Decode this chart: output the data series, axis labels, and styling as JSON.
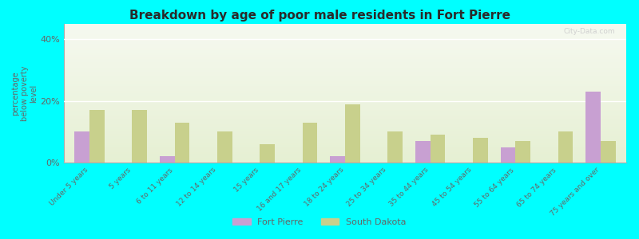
{
  "title": "Breakdown by age of poor male residents in Fort Pierre",
  "ylabel": "percentage\nbelow poverty\nlevel",
  "categories": [
    "Under 5 years",
    "5 years",
    "6 to 11 years",
    "12 to 14 years",
    "15 years",
    "16 and 17 years",
    "18 to 24 years",
    "25 to 34 years",
    "35 to 44 years",
    "45 to 54 years",
    "55 to 64 years",
    "65 to 74 years",
    "75 years and over"
  ],
  "fort_pierre": [
    10,
    0,
    2,
    0,
    0,
    0,
    2,
    0,
    7,
    0,
    5,
    0,
    23
  ],
  "south_dakota": [
    17,
    17,
    13,
    10,
    6,
    13,
    19,
    10,
    9,
    8,
    7,
    10,
    7
  ],
  "fort_pierre_color": "#c8a0d2",
  "south_dakota_color": "#c8d08c",
  "outer_bg_color": "#00ffff",
  "title_color": "#2a2a2a",
  "axis_color": "#666666",
  "yticks": [
    0,
    20,
    40
  ],
  "ylim": [
    0,
    45
  ],
  "bar_width": 0.35,
  "legend_fp_label": "Fort Pierre",
  "legend_sd_label": "South Dakota",
  "watermark": "City-Data.com"
}
